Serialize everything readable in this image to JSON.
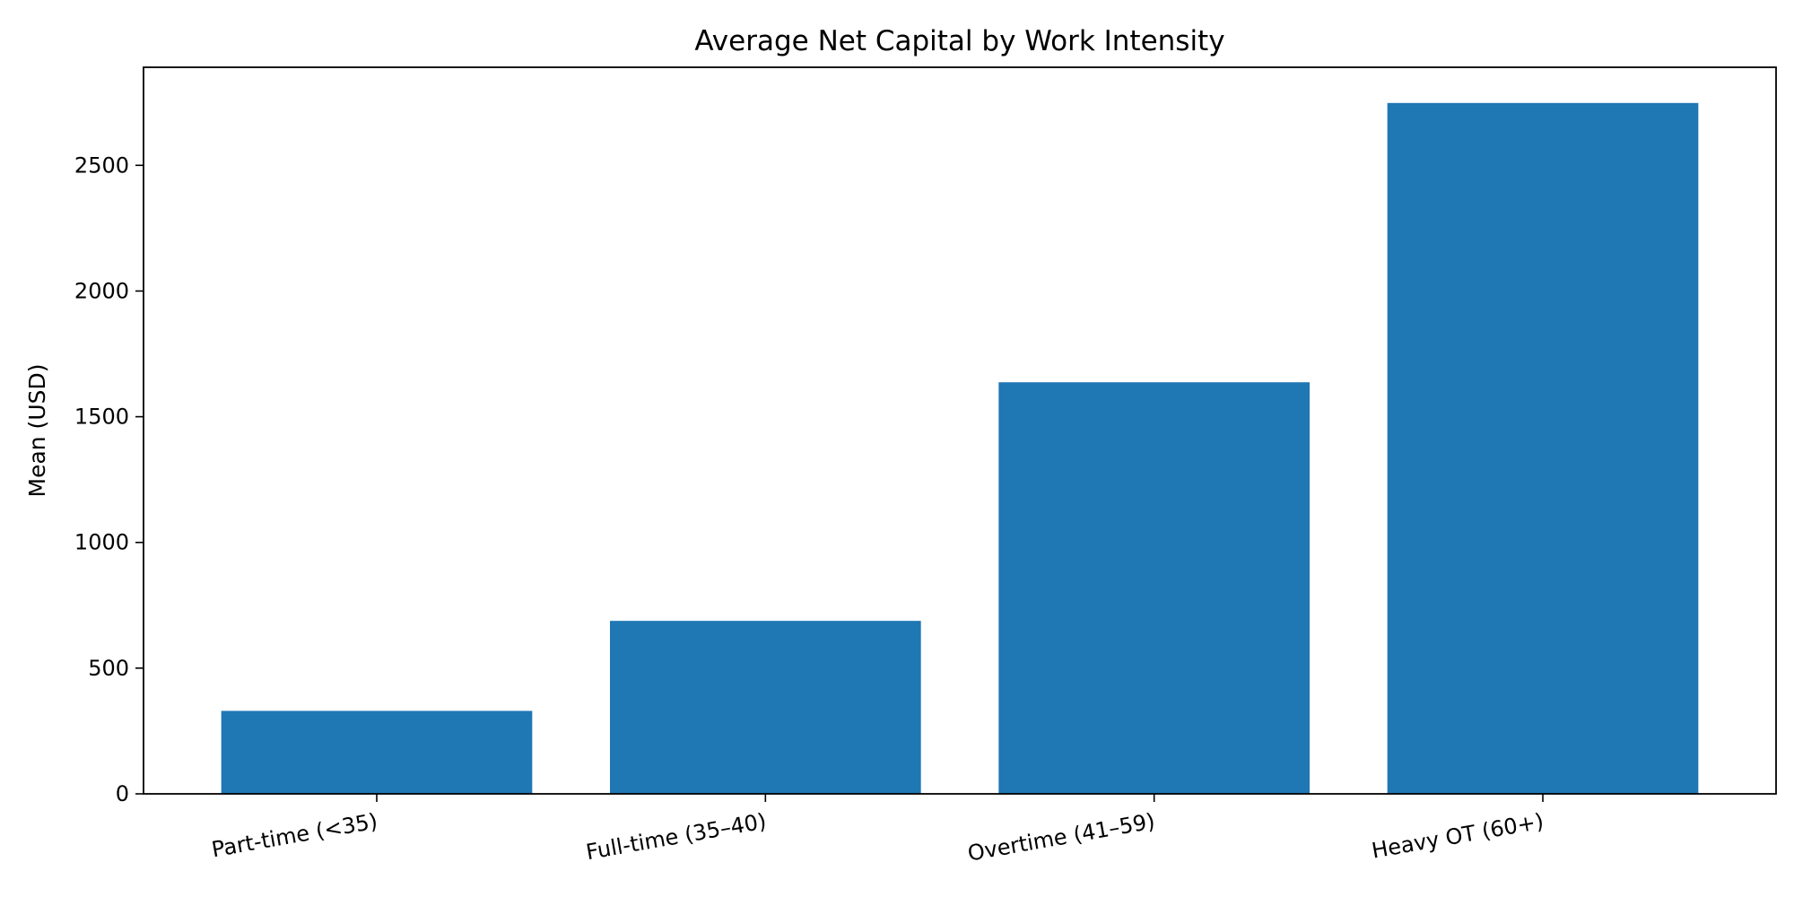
{
  "chart_data": {
    "type": "bar",
    "title": "Average Net Capital by Work Intensity",
    "xlabel": "",
    "ylabel": "Mean (USD)",
    "categories": [
      "Part-time (<35)",
      "Full-time (35–40)",
      "Overtime (41–59)",
      "Heavy OT (60+)"
    ],
    "values": [
      330,
      688,
      1637,
      2748
    ],
    "ylim": [
      0,
      2890
    ],
    "yticks": [
      0,
      500,
      1000,
      1500,
      2000,
      2500
    ],
    "ytick_labels": [
      "0",
      "500",
      "1000",
      "1500",
      "2000",
      "2500"
    ],
    "bar_color": "#1f77b4",
    "grid": false,
    "legend": "none"
  }
}
